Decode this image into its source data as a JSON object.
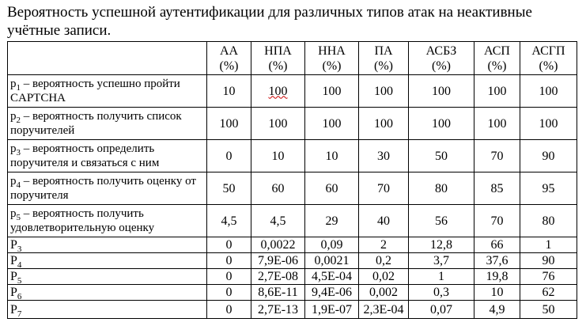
{
  "title": "Вероятность успешной аутентификации для различных типов атак на неактивные учётные записи.",
  "columns": [
    {
      "name": "АА",
      "unit": "(%)"
    },
    {
      "name": "НПА",
      "unit": "(%)"
    },
    {
      "name": "ННА",
      "unit": "(%)"
    },
    {
      "name": "ПА",
      "unit": "(%)"
    },
    {
      "name": "АСБЗ",
      "unit": "(%)"
    },
    {
      "name": "АСП",
      "unit": "(%)"
    },
    {
      "name": "АСГП",
      "unit": "(%)"
    }
  ],
  "rows": [
    {
      "sym": "p",
      "sub": "1",
      "text": " – вероятность успешно пройти CAPTCHA",
      "values": [
        "10",
        "100",
        "100",
        "100",
        "100",
        "100",
        "100"
      ]
    },
    {
      "sym": "p",
      "sub": "2",
      "text": " – вероятность получить список поручителей",
      "values": [
        "100",
        "100",
        "100",
        "100",
        "100",
        "100",
        "100"
      ]
    },
    {
      "sym": "p",
      "sub": "3",
      "text": " – вероятность определить поручителя и связаться с ним",
      "values": [
        "0",
        "10",
        "10",
        "30",
        "50",
        "70",
        "90"
      ]
    },
    {
      "sym": "p",
      "sub": "4",
      "text": " – вероятность получить оценку от поручителя",
      "values": [
        "50",
        "60",
        "60",
        "70",
        "80",
        "85",
        "95"
      ]
    },
    {
      "sym": "p",
      "sub": "5",
      "text": " – вероятность получить удовлетворительную оценку",
      "values": [
        "4,5",
        "4,5",
        "29",
        "40",
        "56",
        "70",
        "80"
      ]
    },
    {
      "sym": "P",
      "sub": "3",
      "text": "",
      "values": [
        "0",
        "0,0022",
        "0,09",
        "2",
        "12,8",
        "66",
        "1"
      ]
    },
    {
      "sym": "P",
      "sub": "4",
      "text": "",
      "values": [
        "0",
        "7,9E-06",
        "0,0021",
        "0,2",
        "3,7",
        "37,6",
        "90"
      ]
    },
    {
      "sym": "P",
      "sub": "5",
      "text": "",
      "values": [
        "0",
        "2,7E-08",
        "4,5E-04",
        "0,02",
        "1",
        "19,8",
        "76"
      ]
    },
    {
      "sym": "P",
      "sub": "6",
      "text": "",
      "values": [
        "0",
        "8,6E-11",
        "9,4E-06",
        "0,002",
        "0,3",
        "10",
        "62"
      ]
    },
    {
      "sym": "P",
      "sub": "7",
      "text": "",
      "values": [
        "0",
        "2,7E-13",
        "1,9E-07",
        "2,3E-04",
        "0,07",
        "4,9",
        "50"
      ]
    }
  ]
}
